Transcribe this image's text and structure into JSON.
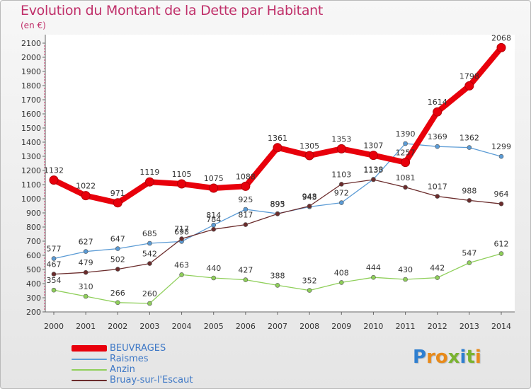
{
  "title": "Evolution du Montant de la Dette par Habitant",
  "subtitle": "(en €)",
  "logo": {
    "letters": [
      "P",
      "r",
      "o",
      "x",
      "i",
      "t",
      "i"
    ],
    "colors": [
      "#2f7fd0",
      "#e88a1a",
      "#e88a1a",
      "#7ab330",
      "#2f7fd0",
      "#7ab330",
      "#e88a1a"
    ]
  },
  "chart_data": {
    "type": "line",
    "title": "Evolution du Montant de la Dette par Habitant",
    "ylabel": "(en €)",
    "xlabel": "",
    "x": [
      "2000",
      "2001",
      "2002",
      "2003",
      "2004",
      "2005",
      "2006",
      "2007",
      "2008",
      "2009",
      "2010",
      "2011",
      "2012",
      "2013",
      "2014"
    ],
    "ylim": [
      200,
      2100
    ],
    "yticks": [
      200,
      300,
      400,
      500,
      600,
      700,
      800,
      900,
      1000,
      1100,
      1200,
      1300,
      1400,
      1500,
      1600,
      1700,
      1800,
      1900,
      2000,
      2100
    ],
    "grid": false,
    "legend_position": "bottom-left",
    "series": [
      {
        "name": "BEUVRAGES",
        "color": "#e8000b",
        "values": [
          1132,
          1022,
          971,
          1119,
          1105,
          1075,
          1088,
          1361,
          1305,
          1353,
          1307,
          1257,
          1614,
          1798,
          2068
        ]
      },
      {
        "name": "Raismes",
        "color": "#5b9bd5",
        "values": [
          577,
          627,
          647,
          685,
          698,
          814,
          925,
          895,
          943,
          972,
          1138,
          1390,
          1369,
          1362,
          1299
        ]
      },
      {
        "name": "Anzin",
        "color": "#8fcf5a",
        "values": [
          354,
          310,
          266,
          260,
          463,
          440,
          427,
          388,
          352,
          408,
          444,
          430,
          442,
          547,
          612
        ]
      },
      {
        "name": "Bruay-sur-l'Escaut",
        "color": "#6b2c2c",
        "values": [
          467,
          479,
          502,
          542,
          717,
          784,
          817,
          893,
          948,
          1103,
          1135,
          1081,
          1017,
          988,
          964
        ]
      }
    ]
  }
}
